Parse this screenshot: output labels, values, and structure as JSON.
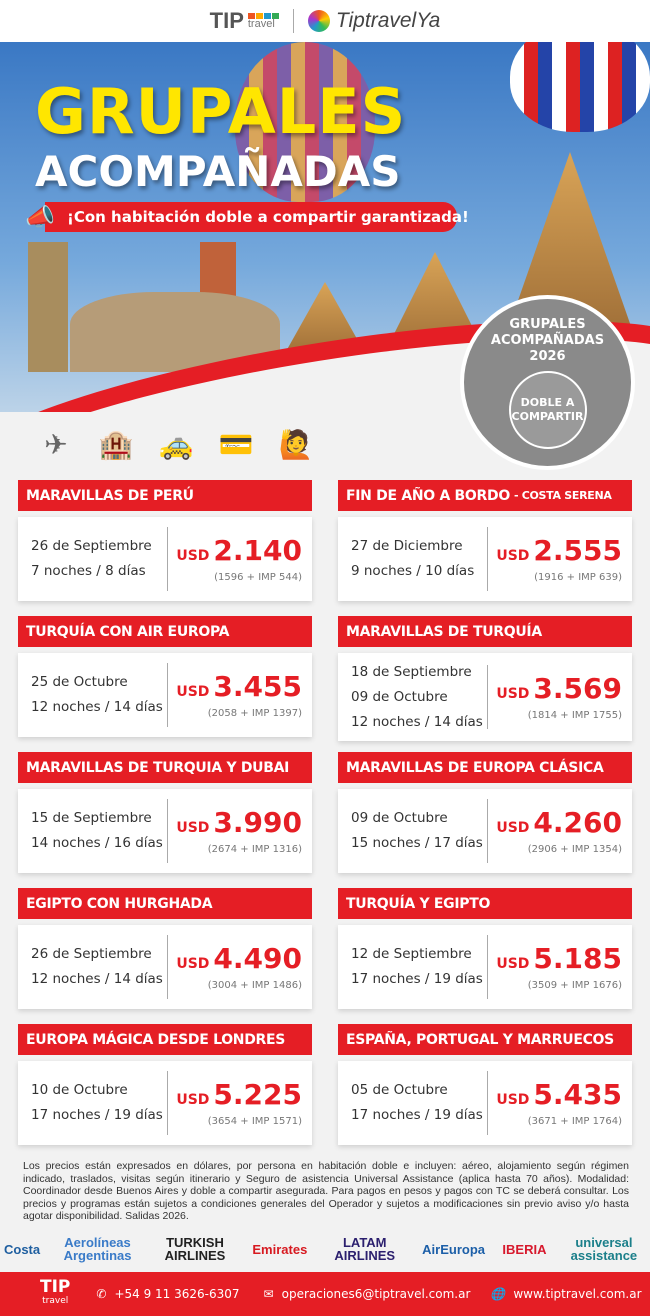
{
  "header": {
    "brand1_big": "TIP",
    "brand1_small": "travel",
    "brand2": "TiptravelYa"
  },
  "hero": {
    "title1": "GRUPALES",
    "title2": "ACOMPAÑADAS",
    "tagline": "¡Con habitación doble a compartir garantizada!",
    "badge_arc": "GRUPALES ACOMPAÑADAS 2026",
    "badge_center": "DOBLE A COMPARTIR"
  },
  "icons": [
    "plane-icon",
    "hotel-icon",
    "taxi-icon",
    "assistance-card-icon",
    "guide-icon"
  ],
  "colors": {
    "accent": "#e51e25",
    "title": "#ffe600"
  },
  "currency": "USD",
  "trips": [
    {
      "title": "MARAVILLAS DE PERÚ",
      "subtitle": "",
      "dates": [
        "26 de Septiembre"
      ],
      "duration": "7 noches / 8 días",
      "price": "2.140",
      "breakdown": "(1596 + IMP 544)"
    },
    {
      "title": "FIN DE AÑO A BORDO",
      "subtitle": "- COSTA SERENA",
      "dates": [
        "27 de Diciembre"
      ],
      "duration": "9 noches / 10 días",
      "price": "2.555",
      "breakdown": "(1916 + IMP 639)"
    },
    {
      "title": "TURQUÍA CON AIR EUROPA",
      "subtitle": "",
      "dates": [
        "25 de Octubre"
      ],
      "duration": "12 noches / 14 días",
      "price": "3.455",
      "breakdown": "(2058 + IMP 1397)"
    },
    {
      "title": "MARAVILLAS DE TURQUÍA",
      "subtitle": "",
      "dates": [
        "18 de Septiembre",
        "09 de Octubre"
      ],
      "duration": "12 noches / 14 días",
      "price": "3.569",
      "breakdown": "(1814 + IMP 1755)"
    },
    {
      "title": "MARAVILLAS DE TURQUIA Y DUBAI",
      "subtitle": "",
      "dates": [
        "15 de Septiembre"
      ],
      "duration": "14 noches / 16 días",
      "price": "3.990",
      "breakdown": "(2674 + IMP 1316)"
    },
    {
      "title": "MARAVILLAS DE EUROPA CLÁSICA",
      "subtitle": "",
      "dates": [
        "09 de Octubre"
      ],
      "duration": "15 noches / 17 días",
      "price": "4.260",
      "breakdown": "(2906 + IMP 1354)"
    },
    {
      "title": "EGIPTO CON HURGHADA",
      "subtitle": "",
      "dates": [
        "26 de Septiembre"
      ],
      "duration": "12 noches / 14 días",
      "price": "4.490",
      "breakdown": "(3004 + IMP 1486)"
    },
    {
      "title": "TURQUÍA Y EGIPTO",
      "subtitle": "",
      "dates": [
        "12 de Septiembre"
      ],
      "duration": "17 noches / 19 días",
      "price": "5.185",
      "breakdown": "(3509 + IMP 1676)"
    },
    {
      "title": "EUROPA MÁGICA DESDE LONDRES",
      "subtitle": "",
      "dates": [
        "10 de Octubre"
      ],
      "duration": "17 noches / 19 días",
      "price": "5.225",
      "breakdown": "(3654 + IMP 1571)"
    },
    {
      "title": "ESPAÑA, PORTUGAL Y MARRUECOS",
      "subtitle": "",
      "dates": [
        "05 de Octubre"
      ],
      "duration": "17 noches / 19 días",
      "price": "5.435",
      "breakdown": "(3671 + IMP 1764)"
    }
  ],
  "legal": "Los precios están expresados en dólares, por persona en habitación doble e incluyen: aéreo, alojamiento según régimen indicado, traslados, visitas según itinerario y Seguro de asistencia Universal Assistance (aplica hasta 70 años). Modalidad: Coordinador desde Buenos Aires y doble a compartir asegurada. Para pagos en pesos y pagos con TC se deberá consultar. Los precios y programas están sujetos a condiciones generales del Operador y sujetos a modificaciones sin previo aviso y/o hasta agotar disponibilidad. Salidas 2026.",
  "partners": [
    {
      "name": "Costa",
      "color": "#1f5fa0"
    },
    {
      "name": "Aerolíneas Argentinas",
      "color": "#3a7bc8"
    },
    {
      "name": "TURKISH AIRLINES",
      "color": "#222"
    },
    {
      "name": "Emirates",
      "color": "#d71a21"
    },
    {
      "name": "LATAM AIRLINES",
      "color": "#2b1f6e"
    },
    {
      "name": "AirEuropa",
      "color": "#1c5fa8"
    },
    {
      "name": "IBERIA",
      "color": "#d7192d"
    },
    {
      "name": "universal assistance",
      "color": "#1b7f8a"
    }
  ],
  "footer": {
    "logo": "TIP",
    "logo_small": "travel",
    "phone": "+54 9 11 3626-6307",
    "email": "operaciones6@tiptravel.com.ar",
    "web": "www.tiptravel.com.ar"
  }
}
